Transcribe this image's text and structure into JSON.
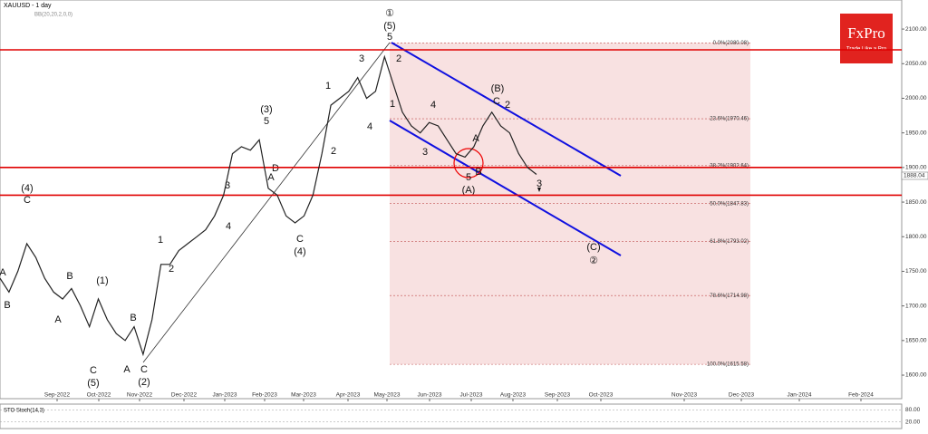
{
  "chart_data": {
    "type": "line",
    "title": "XAUUSD - 1 day",
    "subtitle": "BB(20,20,2,0,0)",
    "brand": "FxPro",
    "tagline": "Trade Like a Pro",
    "values": [
      1740,
      1720,
      1750,
      1790,
      1770,
      1740,
      1720,
      1710,
      1725,
      1700,
      1670,
      1710,
      1680,
      1660,
      1650,
      1670,
      1630,
      1680,
      1760,
      1760,
      1780,
      1790,
      1800,
      1810,
      1830,
      1860,
      1920,
      1930,
      1925,
      1940,
      1870,
      1860,
      1830,
      1820,
      1830,
      1860,
      1920,
      1990,
      2000,
      2010,
      2030,
      2000,
      2010,
      2060,
      2020,
      1980,
      1960,
      1950,
      1965,
      1960,
      1940,
      1920,
      1915,
      1930,
      1960,
      1980,
      1960,
      1950,
      1920,
      1900,
      1890
    ],
    "color": "#222222",
    "ylim": [
      1566,
      2142
    ],
    "yticks": [
      {
        "value": 1600,
        "label": "1600.00"
      },
      {
        "value": 1650,
        "label": "1650.00"
      },
      {
        "value": 1700,
        "label": "1700.00"
      },
      {
        "value": 1750,
        "label": "1750.00"
      },
      {
        "value": 1800,
        "label": "1800.00"
      },
      {
        "value": 1850,
        "label": "1850.00"
      },
      {
        "value": 1900,
        "label": "1900.00"
      },
      {
        "value": 1950,
        "label": "1950.00"
      },
      {
        "value": 2000,
        "label": "2000.00"
      },
      {
        "value": 2050,
        "label": "2050.00"
      },
      {
        "value": 2100,
        "label": "2100.00"
      }
    ],
    "x_axis_labels": [
      "Sep-2022",
      "Oct-2022",
      "Nov-2022",
      "Dec-2022",
      "Jan-2023",
      "Feb-2023",
      "Mar-2023",
      "Apr-2023",
      "May-2023",
      "Jun-2023",
      "Jul-2023",
      "Aug-2023",
      "Sep-2023",
      "Oct-2023",
      "Nov-2023",
      "Dec-2023",
      "Jan-2024",
      "Feb-2024"
    ],
    "levels": [
      2070,
      1900,
      1860
    ],
    "level_color": "#e00000",
    "fib_levels": [
      {
        "value": 2080.08,
        "label": "0.0%(2080.08)"
      },
      {
        "value": 1970.46,
        "label": "23.6%(1970.46)"
      },
      {
        "value": 1902.64,
        "label": "38.2%(1902.64)"
      },
      {
        "value": 1847.83,
        "label": "50.0%(1847.83)"
      },
      {
        "value": 1793.02,
        "label": "61.8%(1793.02)"
      },
      {
        "value": 1714.98,
        "label": "78.6%(1714.98)"
      },
      {
        "value": 1615.58,
        "label": "100.0%(1615.58)"
      }
    ],
    "current_price": {
      "value": 1888.04,
      "label": "1888.04"
    },
    "annotations": [
      "①",
      "(5)",
      "5",
      "2",
      "1",
      "4",
      "3",
      "A",
      "5",
      "B",
      "(A)",
      "(B)",
      "C",
      "2",
      "3",
      "(C)",
      "②",
      "3",
      "1",
      "4",
      "2",
      "(3)",
      "5",
      "D",
      "A",
      "3",
      "4",
      "1",
      "2",
      "C",
      "(4)",
      "(4)",
      "C",
      "A",
      "B",
      "B",
      "A",
      "(1)",
      "B",
      "A",
      "C",
      "(2)",
      "(5)",
      "C"
    ],
    "stoch": {
      "label": "STO Stoch(14,3)",
      "ylim": [
        0,
        100
      ],
      "yticks": [
        {
          "value": 80,
          "label": "80.00"
        },
        {
          "value": 20,
          "label": "20.00"
        }
      ]
    }
  }
}
